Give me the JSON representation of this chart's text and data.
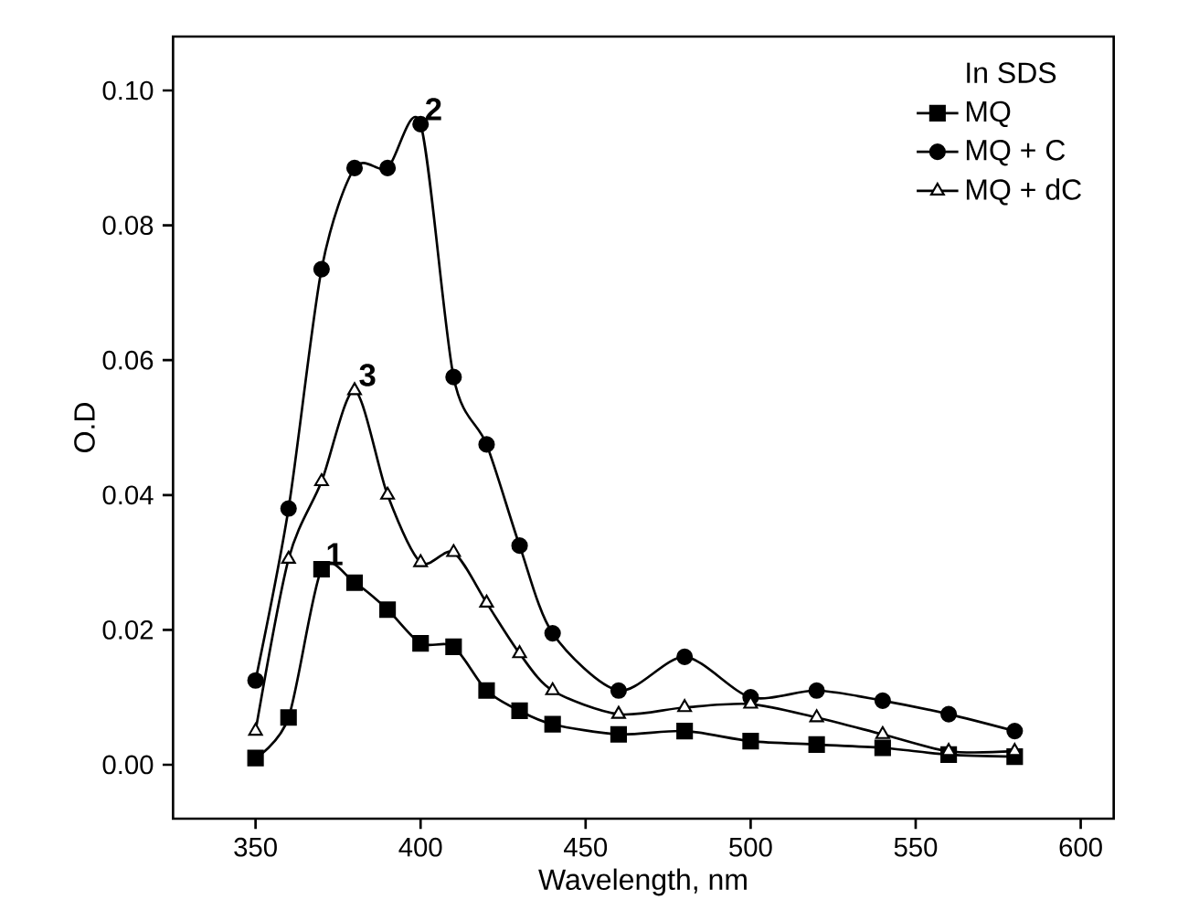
{
  "chart_data": {
    "type": "line",
    "xlabel": "Wavelength, nm",
    "ylabel": "O.D",
    "legend_title": "In SDS",
    "legend": "top right",
    "grid": false,
    "x": [
      350,
      360,
      370,
      380,
      390,
      400,
      410,
      420,
      430,
      440,
      460,
      480,
      500,
      520,
      540,
      560,
      580
    ],
    "series": [
      {
        "name": "MQ",
        "color": "#000000",
        "marker": "square",
        "values": [
          0.001,
          0.007,
          0.029,
          0.027,
          0.023,
          0.018,
          0.0175,
          0.011,
          0.008,
          0.006,
          0.0045,
          0.005,
          0.0035,
          0.003,
          0.0025,
          0.0015,
          0.0012
        ]
      },
      {
        "name": "MQ + C",
        "color": "#000000",
        "marker": "circle",
        "values": [
          0.0125,
          0.038,
          0.0735,
          0.0885,
          0.0885,
          0.095,
          0.0575,
          0.0475,
          0.0325,
          0.0195,
          0.011,
          0.016,
          0.01,
          0.011,
          0.0095,
          0.0075,
          0.005
        ]
      },
      {
        "name": "MQ + dC",
        "color": "#000000",
        "marker": "triangle",
        "values": [
          0.005,
          0.0305,
          0.042,
          0.0555,
          0.04,
          0.03,
          0.0315,
          0.024,
          0.0165,
          0.011,
          0.0075,
          0.0085,
          0.009,
          0.007,
          0.0045,
          0.002,
          0.002
        ]
      }
    ],
    "xlim": [
      325,
      610
    ],
    "ylim": [
      -0.008,
      0.108
    ],
    "xticks": [
      350,
      400,
      450,
      500,
      550,
      600
    ],
    "yticks": [
      {
        "value": 0,
        "label": "0.00"
      },
      {
        "value": 0.02,
        "label": "0.02"
      },
      {
        "value": 0.04,
        "label": "0.04"
      },
      {
        "value": 0.06,
        "label": "0.06"
      },
      {
        "value": 0.08,
        "label": "0.08"
      },
      {
        "value": 0.1,
        "label": "0.10"
      }
    ],
    "annotations": [
      "1",
      "2",
      "3"
    ]
  }
}
